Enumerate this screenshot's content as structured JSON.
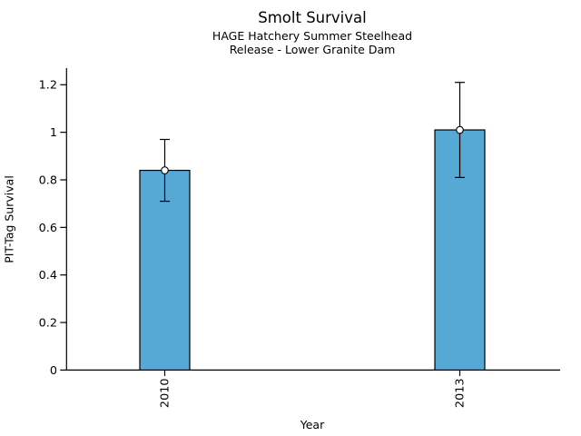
{
  "title": "Smolt Survival",
  "subtitle_line1": "HAGE Hatchery Summer Steelhead",
  "subtitle_line2": "Release - Lower Granite Dam",
  "chart_data": {
    "type": "bar",
    "title": "Smolt Survival",
    "subtitle": [
      "HAGE Hatchery Summer Steelhead",
      "Release - Lower Granite Dam"
    ],
    "xlabel": "Year",
    "ylabel": "PIT-Tag Survival",
    "categories": [
      "2010",
      "2013"
    ],
    "values": [
      0.84,
      1.01
    ],
    "error_low": [
      0.71,
      0.81
    ],
    "error_high": [
      0.97,
      1.21
    ],
    "yticks": [
      0,
      0.2,
      0.4,
      0.6,
      0.8,
      1,
      1.2
    ],
    "ytick_labels": [
      "0",
      "0.2",
      "0.4",
      "0.6",
      "0.8",
      "1",
      "1.2"
    ],
    "ylim": [
      0,
      1.27
    ],
    "grid": false,
    "legend_position": "none",
    "marker": "open-circle",
    "bar_color": "#56A8D5",
    "bar_edge_color": "#000000",
    "error_color": "#000000",
    "axis_color": "#000000",
    "background_color": "#ffffff"
  }
}
